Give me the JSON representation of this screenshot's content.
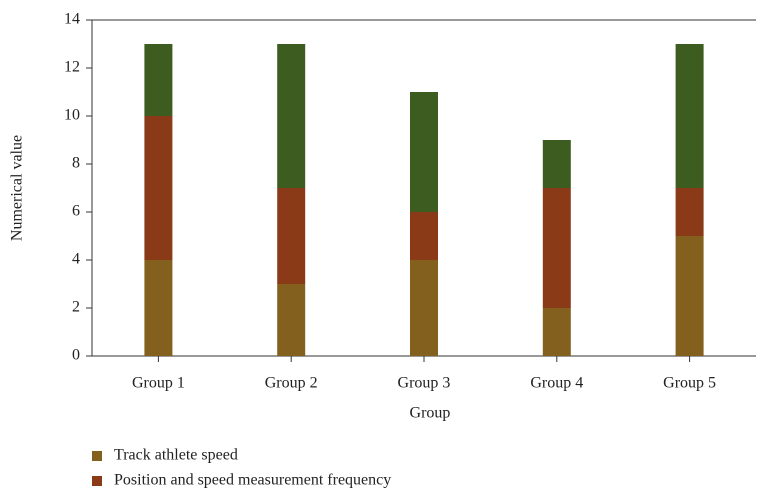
{
  "chart_data": {
    "type": "stacked-bar",
    "x_label": "Group",
    "y_label": "Numerical value",
    "categories": [
      "Group 1",
      "Group 2",
      "Group 3",
      "Group 4",
      "Group 5"
    ],
    "series": [
      {
        "name": "Track athlete speed",
        "color": "#84601f",
        "values": [
          4,
          3,
          4,
          2,
          5
        ]
      },
      {
        "name": "Position and speed measurement frequency",
        "color": "#8a3a17",
        "values": [
          6,
          4,
          2,
          5,
          2
        ]
      },
      {
        "color": "#3d5c1f",
        "values": [
          3,
          6,
          5,
          2,
          6
        ]
      }
    ],
    "ylim": [
      0,
      14
    ],
    "yticks": [
      0,
      2,
      4,
      6,
      8,
      10,
      12,
      14
    ]
  }
}
